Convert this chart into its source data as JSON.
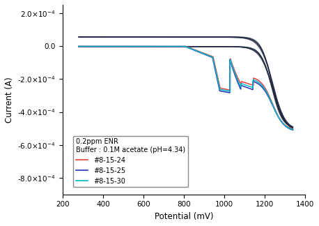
{
  "xlabel": "Potential (mV)",
  "ylabel": "Current (A)",
  "line_colors": [
    "#e8413a",
    "#2233bb",
    "#00b8c8"
  ],
  "line_labels": [
    "#8-15-24",
    "#8-15-25",
    "#8-15-30"
  ],
  "dark_colors": [
    "#1a1a3a",
    "#1a2a4a",
    "#152035"
  ],
  "xlim": [
    200,
    1400
  ],
  "ylim": [
    -0.0009,
    0.00025
  ],
  "xticks": [
    200,
    400,
    600,
    800,
    1000,
    1200,
    1400
  ],
  "yticks": [
    0.0002,
    0.0,
    -0.0002,
    -0.0004,
    -0.0006,
    -0.0008
  ],
  "background_color": "#ffffff",
  "figsize": [
    4.58,
    3.24
  ],
  "dpi": 100,
  "legend_title": "0.2ppm ENR\nBuffer : 0.1M acetate (pH=4.34)"
}
